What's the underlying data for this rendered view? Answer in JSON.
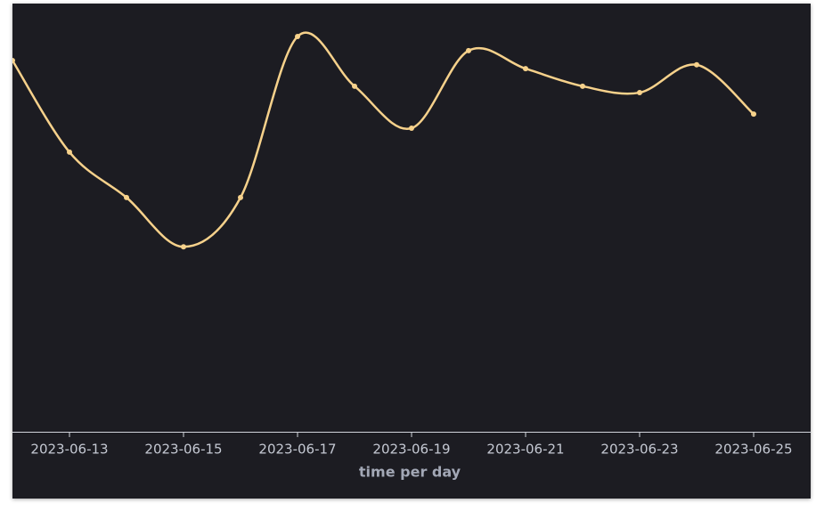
{
  "chart_data": {
    "type": "line",
    "x_label": "time per day",
    "x": [
      "2023-06-12",
      "2023-06-13",
      "2023-06-14",
      "2023-06-15",
      "2023-06-16",
      "2023-06-17",
      "2023-06-18",
      "2023-06-19",
      "2023-06-20",
      "2023-06-21",
      "2023-06-22",
      "2023-06-23",
      "2023-06-24",
      "2023-06-25"
    ],
    "series": [
      {
        "color": "#f6d18b",
        "values": [
          86.7,
          65.3,
          54.7,
          43.2,
          54.7,
          92.3,
          80.7,
          70.9,
          89.0,
          84.8,
          80.7,
          79.2,
          85.7,
          74.2
        ]
      }
    ],
    "xlim": [
      "2023-06-12",
      "2023-06-26"
    ],
    "xticks": [
      "2023-06-13",
      "2023-06-15",
      "2023-06-17",
      "2023-06-19",
      "2023-06-21",
      "2023-06-23",
      "2023-06-25"
    ],
    "ylim": [
      0,
      100
    ],
    "smooth": true
  }
}
